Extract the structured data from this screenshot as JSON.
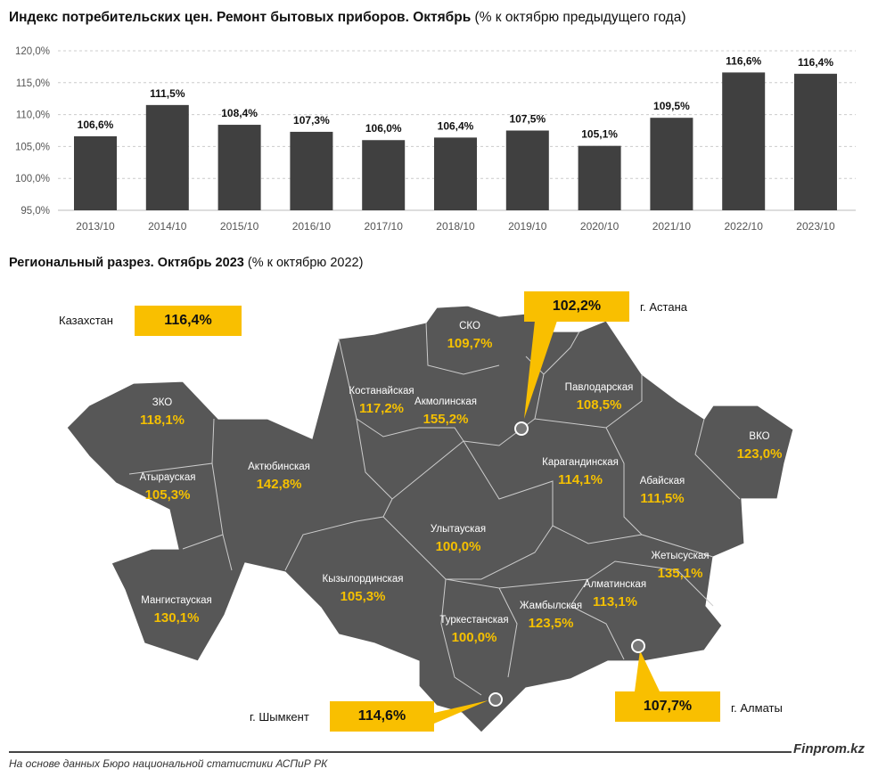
{
  "title": {
    "bold": "Индекс потребительских цен. Ремонт бытовых приборов. Октябрь",
    "normal": "(% к октябрю предыдущего года)"
  },
  "chart_data": {
    "type": "bar",
    "categories": [
      "2013/10",
      "2014/10",
      "2015/10",
      "2016/10",
      "2017/10",
      "2018/10",
      "2019/10",
      "2020/10",
      "2021/10",
      "2022/10",
      "2023/10"
    ],
    "values": [
      106.6,
      111.5,
      108.4,
      107.3,
      106.0,
      106.4,
      107.5,
      105.1,
      109.5,
      116.6,
      116.4
    ],
    "data_labels": [
      "106,6%",
      "111,5%",
      "108,4%",
      "107,3%",
      "106,0%",
      "106,4%",
      "107,5%",
      "105,1%",
      "109,5%",
      "116,6%",
      "116,4%"
    ],
    "ylim": [
      95,
      120
    ],
    "yticks": [
      "95,0%",
      "100,0%",
      "105,0%",
      "110,0%",
      "115,0%",
      "120,0%"
    ],
    "grid": true,
    "bar_color": "#404040"
  },
  "map": {
    "title_bold": "Региональный разрез. Октябрь 2023",
    "title_normal": "(% к октябрю 2022)",
    "fill_color": "#575757",
    "accent_color": "#f9bf00",
    "kazakhstan": {
      "label": "Казахстан",
      "value": "116,4%"
    },
    "cities": [
      {
        "label": "г. Астана",
        "value": "102,2%"
      },
      {
        "label": "г. Шымкент",
        "value": "114,6%"
      },
      {
        "label": "г. Алматы",
        "value": "107,7%"
      }
    ],
    "regions": [
      {
        "label": "СКО",
        "value": "109,7%"
      },
      {
        "label": "ЗКО",
        "value": "118,1%"
      },
      {
        "label": "Костанайская",
        "value": "117,2%"
      },
      {
        "label": "Акмолинская",
        "value": "155,2%"
      },
      {
        "label": "Павлодарская",
        "value": "108,5%"
      },
      {
        "label": "ВКО",
        "value": "123,0%"
      },
      {
        "label": "Атырауская",
        "value": "105,3%"
      },
      {
        "label": "Актюбинская",
        "value": "142,8%"
      },
      {
        "label": "Карагандинская",
        "value": "114,1%"
      },
      {
        "label": "Абайская",
        "value": "111,5%"
      },
      {
        "label": "Улытауская",
        "value": "100,0%"
      },
      {
        "label": "Жетысуская",
        "value": "135,1%"
      },
      {
        "label": "Мангистауская",
        "value": "130,1%"
      },
      {
        "label": "Кызылординская",
        "value": "105,3%"
      },
      {
        "label": "Алматинская",
        "value": "113,1%"
      },
      {
        "label": "Жамбылская",
        "value": "123,5%"
      },
      {
        "label": "Туркестанская",
        "value": "100,0%"
      }
    ]
  },
  "footer": {
    "source": "На основе данных Бюро национальной статистики АСПиР РК",
    "brand": "Finprom.kz"
  }
}
